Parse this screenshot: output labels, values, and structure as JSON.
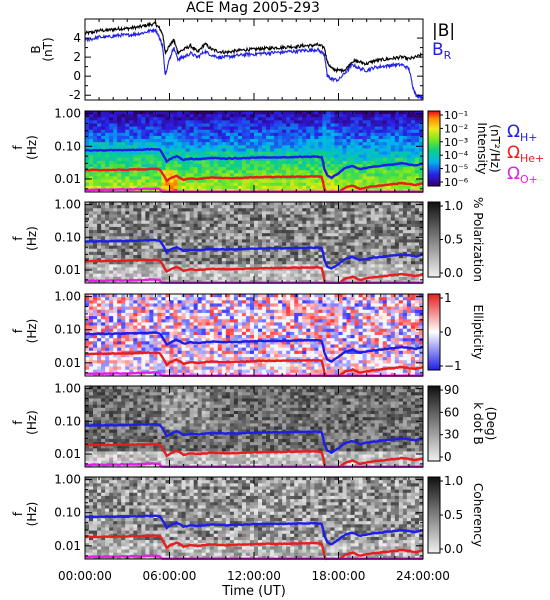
{
  "chart_data": {
    "type": "line",
    "title": "ACE Mag 2005-293",
    "xlabel": "Time (UT)",
    "xticks": [
      "00:00:00",
      "06:00:00",
      "12:00:00",
      "18:00:00",
      "24:00:00"
    ],
    "xlim_hours": [
      0,
      24
    ],
    "panels": [
      {
        "kind": "line",
        "ylabel": "B",
        "yunit": "(nT)",
        "ylim": [
          -2.5,
          6
        ],
        "yticks": [
          "4",
          "2",
          "0",
          "-2"
        ],
        "legend": [
          {
            "name": "|B|",
            "color": "#000000"
          },
          {
            "name": "B",
            "sub": "R",
            "color": "#1e1ee6"
          }
        ],
        "series": [
          {
            "name": "|B|",
            "color": "#000000",
            "x": [
              0,
              0.5,
              1,
              1.5,
              2,
              2.5,
              3,
              3.5,
              4,
              4.5,
              5,
              5.3,
              5.5,
              5.7,
              6,
              6.3,
              6.6,
              7,
              7.5,
              8,
              8.5,
              9,
              9.5,
              10,
              10.5,
              11,
              11.5,
              12,
              12.5,
              13,
              13.5,
              14,
              14.5,
              15,
              15.5,
              16,
              16.5,
              17,
              17.2,
              17.5,
              18,
              18.5,
              19,
              19.5,
              20,
              20.5,
              21,
              21.5,
              22,
              22.5,
              23,
              23.5,
              24
            ],
            "y": [
              4.5,
              4.6,
              4.8,
              4.8,
              4.9,
              5.0,
              5.0,
              5.1,
              5.2,
              5.4,
              5.5,
              5.0,
              4.5,
              2.5,
              3.2,
              3.8,
              2.5,
              2.8,
              3.2,
              2.5,
              3.4,
              2.8,
              2.6,
              2.5,
              2.6,
              2.7,
              2.8,
              2.8,
              2.9,
              2.9,
              3.0,
              3.0,
              3.1,
              3.1,
              3.2,
              3.2,
              3.3,
              3.0,
              1.5,
              0.8,
              0.6,
              0.7,
              1.6,
              1.5,
              1.3,
              1.6,
              1.7,
              1.8,
              1.9,
              2.0,
              1.8,
              2.0,
              2.3
            ]
          },
          {
            "name": "B_R",
            "color": "#1e1ee6",
            "x": [
              0,
              0.5,
              1,
              1.5,
              2,
              2.5,
              3,
              3.5,
              4,
              4.5,
              5,
              5.3,
              5.5,
              5.7,
              6,
              6.3,
              6.6,
              7,
              7.5,
              8,
              8.5,
              9,
              9.5,
              10,
              10.5,
              11,
              11.5,
              12,
              12.5,
              13,
              13.5,
              14,
              14.5,
              15,
              15.5,
              16,
              16.5,
              17,
              17.2,
              17.5,
              18,
              18.5,
              19,
              19.5,
              20,
              20.5,
              21,
              21.5,
              22,
              22.5,
              23,
              23.3,
              23.5,
              24
            ],
            "y": [
              3.8,
              3.9,
              4.1,
              4.1,
              4.2,
              4.3,
              4.3,
              4.4,
              4.5,
              4.7,
              4.9,
              4.0,
              3.2,
              0.2,
              1.8,
              3.0,
              1.8,
              2.0,
              2.4,
              2.0,
              2.6,
              2.2,
              2.0,
              2.0,
              2.1,
              2.2,
              2.3,
              2.3,
              2.4,
              2.4,
              2.5,
              2.5,
              2.6,
              2.6,
              2.7,
              2.7,
              2.8,
              2.3,
              0.0,
              -0.3,
              -0.4,
              0.4,
              1.2,
              0.8,
              0.6,
              0.9,
              1.0,
              1.1,
              1.2,
              1.2,
              0.8,
              -1.2,
              -2.0,
              -2.2
            ]
          }
        ]
      },
      {
        "kind": "spectrogram",
        "ylabel": "f",
        "yunit": "(Hz)",
        "colorbar": {
          "label": "Intensity",
          "unit": "(nT²/Hz)",
          "ticks": [
            "10⁻¹",
            "10⁻²",
            "10⁻³",
            "10⁻⁴",
            "10⁻⁵",
            "10⁻⁶"
          ]
        },
        "legend": [
          {
            "name": "Ω",
            "sub": "H+",
            "color": "#1e1ee6"
          },
          {
            "name": "Ω",
            "sub": "He+",
            "color": "#e61e1e"
          },
          {
            "name": "Ω",
            "sub": "O+",
            "color": "#e61ee6"
          }
        ]
      },
      {
        "kind": "spectrogram",
        "ylabel": "f",
        "yunit": "(Hz)",
        "colorbar": {
          "label": "% Polarization",
          "ticks": [
            "1.0",
            "0.5",
            "0.0"
          ]
        }
      },
      {
        "kind": "spectrogram",
        "ylabel": "f",
        "yunit": "(Hz)",
        "colorbar": {
          "label": "Ellipticity",
          "ticks": [
            "1",
            "0",
            "−1"
          ]
        }
      },
      {
        "kind": "spectrogram",
        "ylabel": "f",
        "yunit": "(Hz)",
        "colorbar": {
          "label": "k dot B",
          "unit": "(Deg)",
          "ticks": [
            "90",
            "60",
            "30",
            "0"
          ]
        }
      },
      {
        "kind": "spectrogram",
        "ylabel": "f",
        "yunit": "(Hz)",
        "colorbar": {
          "label": "Coherency",
          "ticks": [
            "1.0",
            "0.5",
            "0.0"
          ]
        }
      }
    ],
    "freq_axis": {
      "scale": "log",
      "ylim": [
        0.004,
        1.2
      ],
      "yticks": [
        "1.00",
        "0.10",
        "0.01"
      ],
      "yticks_values": [
        1.0,
        0.1,
        0.01
      ]
    },
    "gyrofrequency_traces": {
      "x": [
        0,
        1,
        2,
        3,
        4,
        5,
        5.3,
        5.6,
        5.8,
        6,
        6.5,
        7,
        7.5,
        8,
        9,
        10,
        11,
        12,
        13,
        14,
        15,
        16,
        16.5,
        16.8,
        17.0,
        17.2,
        17.5,
        18,
        18.5,
        19,
        19.5,
        20,
        20.5,
        21,
        21.5,
        22,
        22.5,
        23,
        23.5,
        24
      ],
      "H+": [
        0.075,
        0.075,
        0.076,
        0.077,
        0.079,
        0.082,
        0.078,
        0.05,
        0.035,
        0.04,
        0.05,
        0.038,
        0.042,
        0.04,
        0.044,
        0.042,
        0.043,
        0.045,
        0.046,
        0.046,
        0.047,
        0.048,
        0.048,
        0.046,
        0.02,
        0.013,
        0.011,
        0.015,
        0.022,
        0.025,
        0.02,
        0.022,
        0.024,
        0.025,
        0.027,
        0.028,
        0.03,
        0.028,
        0.026,
        0.03
      ]
    }
  }
}
